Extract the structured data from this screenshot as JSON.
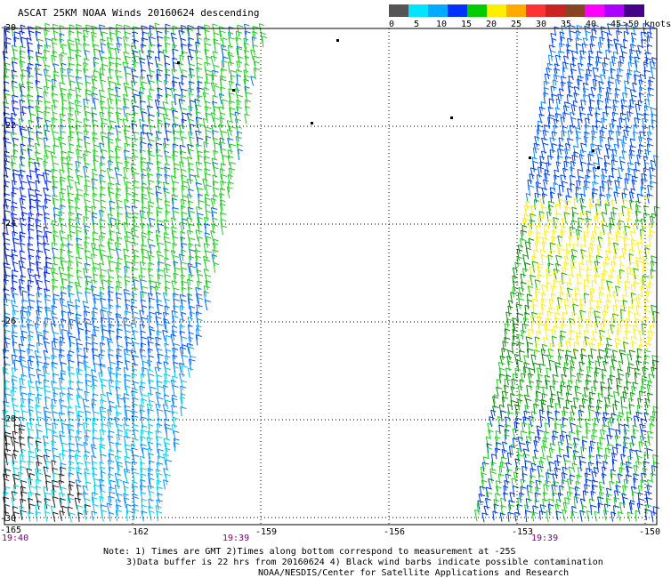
{
  "title": "ASCAT 25KM NOAA Winds 20160624 descending",
  "legend": {
    "unit_label": ">50 knots",
    "labels": [
      "0",
      "5",
      "10",
      "15",
      "20",
      "25",
      "30",
      "35",
      "40",
      "45"
    ],
    "colors": [
      "#555555",
      "#00e5ff",
      "#00aaff",
      "#0033ff",
      "#00cc00",
      "#ffee00",
      "#ffaa00",
      "#ff3333",
      "#cc2222",
      "#884422",
      "#ff00ff",
      "#aa00ff",
      "#440088"
    ]
  },
  "axes": {
    "lon_labels": [
      "-165",
      "-162",
      "-159",
      "-156",
      "-153",
      "-150"
    ],
    "lat_labels": [
      "-20",
      "-22",
      "-24",
      "-26",
      "-28",
      "-30"
    ]
  },
  "times": [
    "19:40",
    "19:39",
    "19:39"
  ],
  "notes": {
    "line1": "Note: 1) Times are GMT 2)Times along bottom correspond to measurement at -25S",
    "line2": "3)Data buffer is 22 hrs from 20160624 4) Black wind barbs indicate possible contamination",
    "line3": "NOAA/NESDIS/Center for Satellite Applications and Research"
  },
  "swaths": [
    {
      "name": "west-swath",
      "description": "descending pass"
    },
    {
      "name": "east-swath",
      "description": "descending pass"
    }
  ]
}
